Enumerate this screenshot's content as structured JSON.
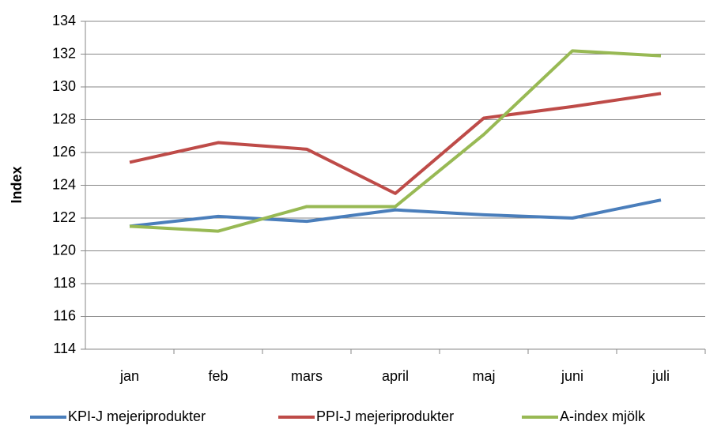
{
  "chart_data": {
    "type": "line",
    "y_label": "Index",
    "categories": [
      "jan",
      "feb",
      "mars",
      "april",
      "maj",
      "juni",
      "juli"
    ],
    "series": [
      {
        "name": "KPI-J mejeriprodukter",
        "color": "#4a7ebb",
        "values": [
          121.5,
          122.1,
          121.8,
          122.5,
          122.2,
          122.0,
          123.1
        ]
      },
      {
        "name": "PPI-J mejeriprodukter",
        "color": "#be4b48",
        "values": [
          125.4,
          126.6,
          126.2,
          123.5,
          128.1,
          128.8,
          129.6
        ]
      },
      {
        "name": "A-index mjölk",
        "color": "#98b954",
        "values": [
          121.5,
          121.2,
          122.7,
          122.7,
          127.1,
          132.2,
          131.9
        ]
      }
    ],
    "ylim": [
      114,
      134
    ],
    "yticks": [
      114,
      116,
      118,
      120,
      122,
      124,
      126,
      128,
      130,
      132,
      134
    ],
    "grid": true,
    "legend": "bottom"
  }
}
